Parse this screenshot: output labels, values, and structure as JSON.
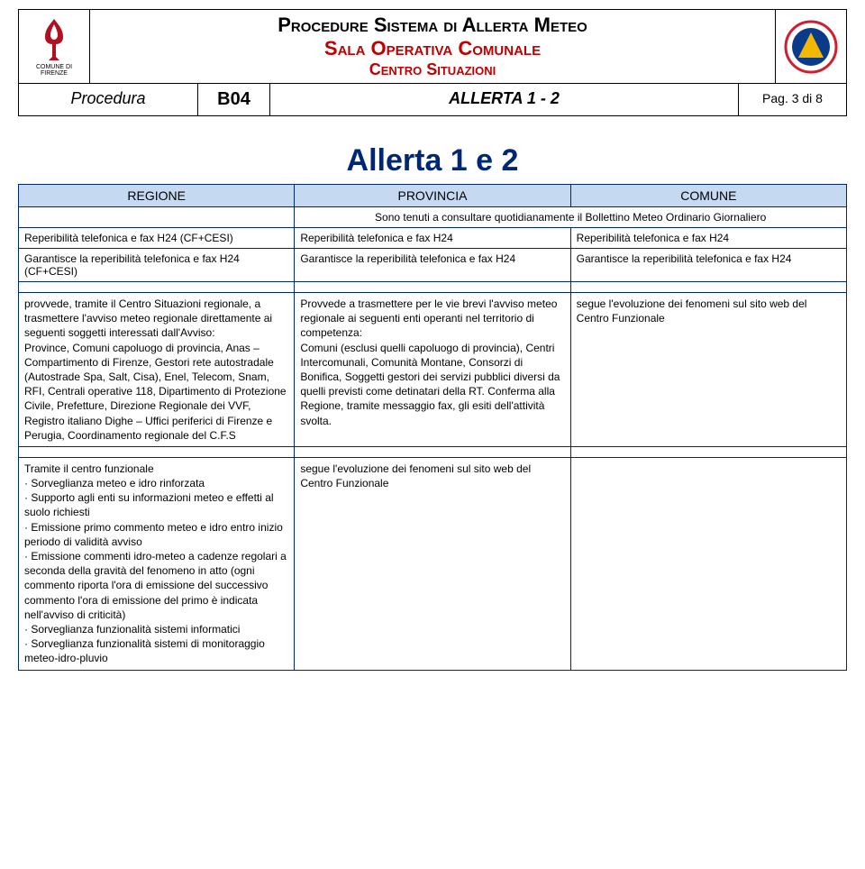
{
  "header": {
    "logo_sub": "COMUNE DI FIRENZE",
    "title1": "Procedure Sistema di Allerta Meteo",
    "title2": "Sala Operativa Comunale",
    "title3": "Centro Situazioni",
    "proc_label": "Procedura",
    "proc_code": "B04",
    "proc_title": "ALLERTA 1 - 2",
    "proc_page": "Pag. 3 di 8"
  },
  "big_title": "Allerta 1 e 2",
  "colors": {
    "header_bg": "#c5d9f1",
    "border": "#002776",
    "title_red": "#c00000",
    "title_blue": "#002776"
  },
  "columns": {
    "regione": "REGIONE",
    "provincia": "PROVINCIA",
    "comune": "COMUNE"
  },
  "row_bollettino": "Sono tenuti a consultare quotidianamente il Bollettino Meteo Ordinario Giornaliero",
  "row_reper": {
    "regione": "Reperibilità telefonica e fax H24 (CF+CESI)",
    "provincia": "Reperibilità telefonica e fax H24",
    "comune": "Reperibilità telefonica e fax H24"
  },
  "row_garant": {
    "regione": "Garantisce la reperibilità telefonica e fax H24 (CF+CESI)",
    "provincia": "Garantisce la reperibilità telefonica e fax H24",
    "comune": "Garantisce la reperibilità telefonica e fax H24"
  },
  "row_provvede": {
    "regione": "provvede, tramite il Centro Situazioni regionale, a trasmettere l'avviso meteo regionale direttamente ai seguenti soggetti interessati dall'Avviso:\nProvince, Comuni capoluogo di provincia, Anas – Compartimento di Firenze, Gestori rete autostradale (Autostrade Spa, Salt, Cisa), Enel, Telecom, Snam, RFI, Centrali operative 118, Dipartimento di Protezione Civile, Prefetture, Direzione Regionale dei VVF, Registro italiano Dighe – Uffici periferici di Firenze e Perugia, Coordinamento regionale del C.F.S",
    "provincia": "Provvede a trasmettere per le vie brevi l'avviso meteo regionale ai seguenti enti operanti nel territorio di competenza:\nComuni (esclusi quelli capoluogo di provincia), Centri Intercomunali, Comunità Montane, Consorzi di Bonifica, Soggetti gestori dei servizi pubblici diversi da quelli previsti come detinatari della RT. Conferma alla Regione, tramite messaggio fax, gli esiti dell'attività svolta.",
    "comune": "segue l'evoluzione dei fenomeni sul sito web del Centro Funzionale"
  },
  "row_tramite": {
    "regione": "Tramite il centro funzionale\n· Sorveglianza meteo e idro rinforzata\n· Supporto agli enti su informazioni meteo e effetti al suolo richiesti\n· Emissione primo commento meteo e idro entro inizio periodo di validità avviso\n· Emissione commenti idro-meteo a cadenze regolari a seconda della gravità del fenomeno in atto (ogni commento riporta l'ora di emissione del successivo commento l'ora di emissione del primo è indicata nell'avviso di criticità)\n· Sorveglianza funzionalità sistemi informatici\n· Sorveglianza funzionalità sistemi di monitoraggio meteo-idro-pluvio",
    "provincia": "segue l'evoluzione dei fenomeni sul sito web del Centro Funzionale",
    "comune": ""
  }
}
